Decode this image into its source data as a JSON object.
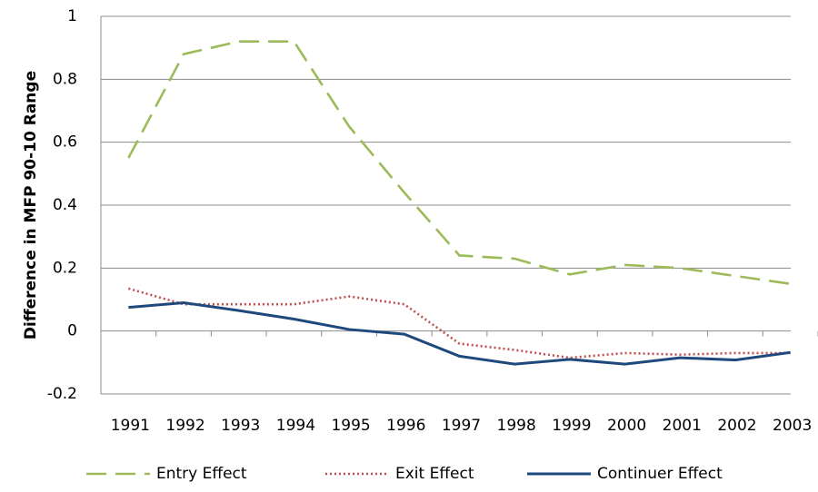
{
  "chart_data": {
    "type": "line",
    "y_label": "Difference in MFP 90-10 Range",
    "categories": [
      "1991",
      "1992",
      "1993",
      "1994",
      "1995",
      "1996",
      "1997",
      "1998",
      "1999",
      "2000",
      "2001",
      "2002",
      "2003"
    ],
    "series": [
      {
        "name": "Entry Effect",
        "color": "#9bbb59",
        "style": "dashed",
        "values": [
          0.55,
          0.88,
          0.92,
          0.92,
          0.65,
          0.44,
          0.24,
          0.23,
          0.18,
          0.21,
          0.2,
          0.175,
          0.15
        ]
      },
      {
        "name": "Exit Effect",
        "color": "#c0504d",
        "style": "dotted",
        "values": [
          0.135,
          0.085,
          0.085,
          0.085,
          0.11,
          0.085,
          -0.04,
          -0.06,
          -0.085,
          -0.07,
          -0.075,
          -0.07,
          -0.07
        ]
      },
      {
        "name": "Continuer Effect",
        "color": "#1f497d",
        "style": "solid",
        "values": [
          0.075,
          0.09,
          0.065,
          0.038,
          0.005,
          -0.01,
          -0.08,
          -0.105,
          -0.09,
          -0.105,
          -0.085,
          -0.092,
          -0.068
        ]
      }
    ],
    "ylim": [
      -0.2,
      1
    ],
    "yticks": [
      -0.2,
      0,
      0.2,
      0.4,
      0.6,
      0.8,
      1
    ],
    "grid": true,
    "legend": "bottom"
  }
}
